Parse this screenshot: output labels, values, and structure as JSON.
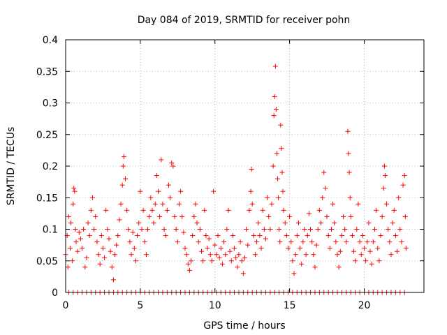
{
  "chart_data": {
    "type": "scatter",
    "title": "Day 084 of 2019, SRMTID for receiver pohn",
    "xlabel": "GPS time / hours",
    "ylabel": "SRMTID / TECUs",
    "xlim": [
      0,
      24
    ],
    "ylim": [
      0,
      0.4
    ],
    "xticks": [
      0,
      5,
      10,
      15,
      20
    ],
    "xtick_labels": [
      "0",
      "5",
      "10",
      "15",
      "20"
    ],
    "yticks": [
      0,
      0.05,
      0.1,
      0.15,
      0.2,
      0.25,
      0.3,
      0.35,
      0.4
    ],
    "ytick_labels": [
      "0",
      "0.05",
      "0.1",
      "0.15",
      "0.2",
      "0.25",
      "0.3",
      "0.35",
      "0.4"
    ],
    "grid": true,
    "marker": "+",
    "color": "#ff0000",
    "series": [
      {
        "name": "SRMTID",
        "points": [
          [
            0.0,
            0.06
          ],
          [
            0.1,
            0.09
          ],
          [
            0.15,
            0.04
          ],
          [
            0.2,
            0.12
          ],
          [
            0.3,
            0.07
          ],
          [
            0.35,
            0.11
          ],
          [
            0.45,
            0.05
          ],
          [
            0.5,
            0.14
          ],
          [
            0.55,
            0.165
          ],
          [
            0.6,
            0.16
          ],
          [
            0.65,
            0.1
          ],
          [
            0.7,
            0.08
          ],
          [
            0.8,
            0.065
          ],
          [
            0.9,
            0.095
          ],
          [
            1.0,
            0.085
          ],
          [
            1.1,
            0.07
          ],
          [
            1.2,
            0.1
          ],
          [
            1.3,
            0.04
          ],
          [
            1.4,
            0.055
          ],
          [
            1.5,
            0.11
          ],
          [
            1.6,
            0.09
          ],
          [
            1.7,
            0.13
          ],
          [
            1.8,
            0.15
          ],
          [
            1.9,
            0.1
          ],
          [
            2.0,
            0.12
          ],
          [
            2.1,
            0.08
          ],
          [
            2.2,
            0.06
          ],
          [
            2.3,
            0.045
          ],
          [
            2.4,
            0.09
          ],
          [
            2.5,
            0.07
          ],
          [
            2.6,
            0.055
          ],
          [
            2.7,
            0.13
          ],
          [
            2.8,
            0.1
          ],
          [
            2.9,
            0.085
          ],
          [
            3.0,
            0.065
          ],
          [
            3.1,
            0.04
          ],
          [
            3.2,
            0.02
          ],
          [
            3.3,
            0.06
          ],
          [
            3.4,
            0.075
          ],
          [
            3.5,
            0.09
          ],
          [
            3.6,
            0.115
          ],
          [
            3.7,
            0.14
          ],
          [
            3.8,
            0.17
          ],
          [
            3.85,
            0.2
          ],
          [
            3.9,
            0.215
          ],
          [
            4.0,
            0.18
          ],
          [
            4.1,
            0.13
          ],
          [
            4.2,
            0.1
          ],
          [
            4.3,
            0.08
          ],
          [
            4.4,
            0.06
          ],
          [
            4.5,
            0.095
          ],
          [
            4.6,
            0.07
          ],
          [
            4.7,
            0.05
          ],
          [
            4.8,
            0.09
          ],
          [
            4.9,
            0.11
          ],
          [
            5.0,
            0.16
          ],
          [
            5.1,
            0.1
          ],
          [
            5.2,
            0.13
          ],
          [
            5.3,
            0.08
          ],
          [
            5.4,
            0.06
          ],
          [
            5.5,
            0.1
          ],
          [
            5.6,
            0.12
          ],
          [
            5.7,
            0.15
          ],
          [
            5.8,
            0.13
          ],
          [
            5.9,
            0.11
          ],
          [
            6.0,
            0.14
          ],
          [
            6.1,
            0.185
          ],
          [
            6.2,
            0.16
          ],
          [
            6.3,
            0.12
          ],
          [
            6.4,
            0.21
          ],
          [
            6.5,
            0.14
          ],
          [
            6.6,
            0.1
          ],
          [
            6.7,
            0.09
          ],
          [
            6.8,
            0.13
          ],
          [
            6.9,
            0.17
          ],
          [
            7.0,
            0.15
          ],
          [
            7.1,
            0.205
          ],
          [
            7.2,
            0.2
          ],
          [
            7.3,
            0.12
          ],
          [
            7.4,
            0.1
          ],
          [
            7.5,
            0.08
          ],
          [
            7.6,
            0.14
          ],
          [
            7.7,
            0.16
          ],
          [
            7.8,
            0.12
          ],
          [
            7.9,
            0.095
          ],
          [
            8.0,
            0.07
          ],
          [
            8.1,
            0.06
          ],
          [
            8.2,
            0.045
          ],
          [
            8.3,
            0.035
          ],
          [
            8.4,
            0.05
          ],
          [
            8.5,
            0.09
          ],
          [
            8.6,
            0.12
          ],
          [
            8.7,
            0.14
          ],
          [
            8.8,
            0.11
          ],
          [
            8.9,
            0.08
          ],
          [
            9.0,
            0.1
          ],
          [
            9.1,
            0.065
          ],
          [
            9.2,
            0.05
          ],
          [
            9.3,
            0.13
          ],
          [
            9.4,
            0.09
          ],
          [
            9.5,
            0.07
          ],
          [
            9.6,
            0.085
          ],
          [
            9.7,
            0.06
          ],
          [
            9.8,
            0.05
          ],
          [
            9.9,
            0.16
          ],
          [
            10.0,
            0.075
          ],
          [
            10.1,
            0.06
          ],
          [
            10.2,
            0.09
          ],
          [
            10.3,
            0.055
          ],
          [
            10.4,
            0.07
          ],
          [
            10.5,
            0.045
          ],
          [
            10.6,
            0.08
          ],
          [
            10.7,
            0.06
          ],
          [
            10.8,
            0.1
          ],
          [
            10.9,
            0.13
          ],
          [
            11.0,
            0.065
          ],
          [
            11.1,
            0.05
          ],
          [
            11.2,
            0.09
          ],
          [
            11.3,
            0.07
          ],
          [
            11.4,
            0.055
          ],
          [
            11.5,
            0.04
          ],
          [
            11.6,
            0.06
          ],
          [
            11.7,
            0.08
          ],
          [
            11.8,
            0.05
          ],
          [
            11.9,
            0.03
          ],
          [
            12.0,
            0.055
          ],
          [
            12.1,
            0.1
          ],
          [
            12.2,
            0.075
          ],
          [
            12.3,
            0.13
          ],
          [
            12.4,
            0.16
          ],
          [
            12.45,
            0.195
          ],
          [
            12.5,
            0.14
          ],
          [
            12.6,
            0.09
          ],
          [
            12.7,
            0.06
          ],
          [
            12.8,
            0.08
          ],
          [
            12.9,
            0.11
          ],
          [
            13.0,
            0.09
          ],
          [
            13.1,
            0.07
          ],
          [
            13.2,
            0.13
          ],
          [
            13.3,
            0.1
          ],
          [
            13.4,
            0.085
          ],
          [
            13.5,
            0.15
          ],
          [
            13.6,
            0.12
          ],
          [
            13.7,
            0.1
          ],
          [
            13.8,
            0.14
          ],
          [
            13.9,
            0.2
          ],
          [
            13.95,
            0.28
          ],
          [
            14.0,
            0.31
          ],
          [
            14.05,
            0.358
          ],
          [
            14.1,
            0.29
          ],
          [
            14.15,
            0.22
          ],
          [
            14.2,
            0.18
          ],
          [
            14.25,
            0.15
          ],
          [
            14.3,
            0.1
          ],
          [
            14.35,
            0.08
          ],
          [
            14.4,
            0.265
          ],
          [
            14.45,
            0.228
          ],
          [
            14.5,
            0.19
          ],
          [
            14.55,
            0.16
          ],
          [
            14.6,
            0.13
          ],
          [
            14.7,
            0.11
          ],
          [
            14.8,
            0.09
          ],
          [
            14.9,
            0.07
          ],
          [
            15.0,
            0.12
          ],
          [
            15.1,
            0.08
          ],
          [
            15.2,
            0.05
          ],
          [
            15.3,
            0.03
          ],
          [
            15.4,
            0.06
          ],
          [
            15.5,
            0.09
          ],
          [
            15.6,
            0.11
          ],
          [
            15.7,
            0.07
          ],
          [
            15.8,
            0.045
          ],
          [
            15.9,
            0.08
          ],
          [
            16.0,
            0.1
          ],
          [
            16.1,
            0.06
          ],
          [
            16.2,
            0.09
          ],
          [
            16.3,
            0.125
          ],
          [
            16.4,
            0.1
          ],
          [
            16.5,
            0.08
          ],
          [
            16.6,
            0.06
          ],
          [
            16.7,
            0.04
          ],
          [
            16.8,
            0.075
          ],
          [
            16.9,
            0.1
          ],
          [
            17.0,
            0.13
          ],
          [
            17.1,
            0.11
          ],
          [
            17.2,
            0.15
          ],
          [
            17.3,
            0.19
          ],
          [
            17.4,
            0.165
          ],
          [
            17.5,
            0.12
          ],
          [
            17.6,
            0.09
          ],
          [
            17.7,
            0.07
          ],
          [
            17.8,
            0.1
          ],
          [
            17.9,
            0.14
          ],
          [
            18.0,
            0.11
          ],
          [
            18.1,
            0.08
          ],
          [
            18.2,
            0.06
          ],
          [
            18.3,
            0.04
          ],
          [
            18.4,
            0.065
          ],
          [
            18.5,
            0.09
          ],
          [
            18.6,
            0.12
          ],
          [
            18.7,
            0.1
          ],
          [
            18.8,
            0.08
          ],
          [
            18.9,
            0.255
          ],
          [
            18.95,
            0.22
          ],
          [
            19.0,
            0.19
          ],
          [
            19.05,
            0.15
          ],
          [
            19.1,
            0.12
          ],
          [
            19.2,
            0.09
          ],
          [
            19.3,
            0.065
          ],
          [
            19.4,
            0.05
          ],
          [
            19.5,
            0.1
          ],
          [
            19.6,
            0.14
          ],
          [
            19.7,
            0.08
          ],
          [
            19.8,
            0.06
          ],
          [
            19.9,
            0.09
          ],
          [
            20.0,
            0.07
          ],
          [
            20.1,
            0.05
          ],
          [
            20.2,
            0.08
          ],
          [
            20.3,
            0.11
          ],
          [
            20.4,
            0.065
          ],
          [
            20.5,
            0.045
          ],
          [
            20.6,
            0.08
          ],
          [
            20.7,
            0.1
          ],
          [
            20.8,
            0.13
          ],
          [
            20.9,
            0.07
          ],
          [
            21.0,
            0.05
          ],
          [
            21.1,
            0.09
          ],
          [
            21.2,
            0.12
          ],
          [
            21.3,
            0.165
          ],
          [
            21.35,
            0.2
          ],
          [
            21.4,
            0.185
          ],
          [
            21.5,
            0.14
          ],
          [
            21.6,
            0.1
          ],
          [
            21.7,
            0.08
          ],
          [
            21.8,
            0.06
          ],
          [
            21.9,
            0.11
          ],
          [
            22.0,
            0.13
          ],
          [
            22.1,
            0.09
          ],
          [
            22.2,
            0.065
          ],
          [
            22.3,
            0.15
          ],
          [
            22.4,
            0.1
          ],
          [
            22.5,
            0.08
          ],
          [
            22.6,
            0.17
          ],
          [
            22.7,
            0.185
          ],
          [
            22.75,
            0.12
          ],
          [
            22.8,
            0.07
          ]
        ]
      }
    ],
    "zero_points_x": [
      0.2,
      0.5,
      0.8,
      1.1,
      1.4,
      1.7,
      2.0,
      2.3,
      2.6,
      2.9,
      3.2,
      3.5,
      3.8,
      4.1,
      4.4,
      4.7,
      5.0,
      5.3,
      5.6,
      5.9,
      6.2,
      6.5,
      6.8,
      7.1,
      7.4,
      7.7,
      8.0,
      8.3,
      8.6,
      8.9,
      9.2,
      9.5,
      9.8,
      10.1,
      10.4,
      10.7,
      11.0,
      11.3,
      11.6,
      11.9,
      12.2,
      12.5,
      12.8,
      13.1,
      13.4,
      13.7,
      14.0,
      14.3,
      14.6,
      14.9,
      15.2,
      15.5,
      15.8,
      16.1,
      16.4,
      16.7,
      17.0,
      17.3,
      17.6,
      17.9,
      18.2,
      18.5,
      18.8,
      19.1,
      19.4,
      19.7,
      20.0,
      20.3,
      20.6,
      20.9,
      21.2,
      21.5,
      21.8,
      22.1,
      22.4,
      22.7
    ]
  }
}
